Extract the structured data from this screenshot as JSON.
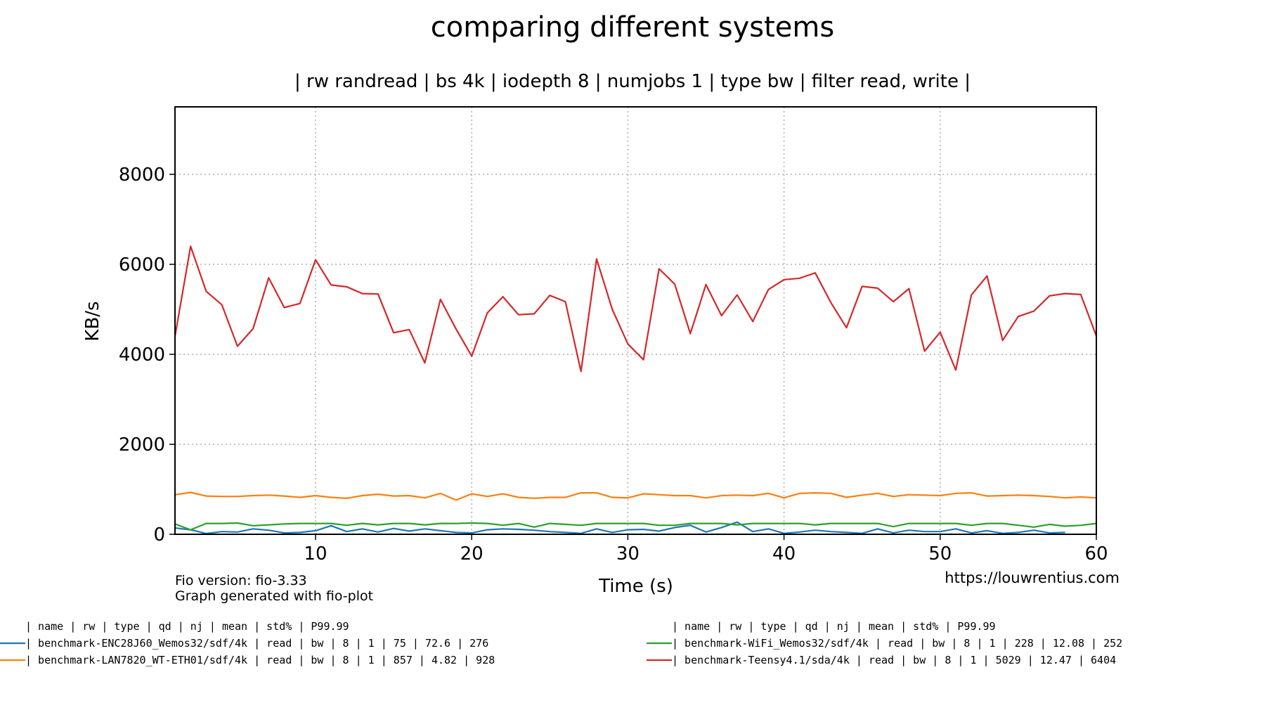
{
  "chart_data": {
    "type": "line",
    "title": "comparing different systems",
    "subtitle": "| rw randread | bs 4k | iodepth 8 | numjobs 1 | type bw | filter read, write |",
    "xlabel": "Time (s)",
    "ylabel": "KB/s",
    "xlim": [
      1,
      60
    ],
    "ylim": [
      0,
      9500
    ],
    "xticks": [
      10,
      20,
      30,
      40,
      50,
      60
    ],
    "yticks": [
      0,
      2000,
      4000,
      6000,
      8000
    ],
    "grid": true,
    "footer_left": [
      "Fio version: fio-3.33",
      "Graph generated with fio-plot"
    ],
    "footer_right": "https://louwrentius.com",
    "x": [
      1,
      2,
      3,
      4,
      5,
      6,
      7,
      8,
      9,
      10,
      11,
      12,
      13,
      14,
      15,
      16,
      17,
      18,
      19,
      20,
      21,
      22,
      23,
      24,
      25,
      26,
      27,
      28,
      29,
      30,
      31,
      32,
      33,
      34,
      35,
      36,
      37,
      38,
      39,
      40,
      41,
      42,
      43,
      44,
      45,
      46,
      47,
      48,
      49,
      50,
      51,
      52,
      53,
      54,
      55,
      56,
      57,
      58,
      59,
      60
    ],
    "series": [
      {
        "name": "benchmark-ENC28J60_Wemos32/sdf/4k",
        "color": "#1f77b4",
        "values": [
          140,
          100,
          15,
          60,
          50,
          120,
          90,
          30,
          40,
          80,
          190,
          60,
          120,
          50,
          130,
          70,
          120,
          80,
          40,
          30,
          100,
          120,
          110,
          90,
          60,
          40,
          20,
          120,
          40,
          100,
          110,
          70,
          150,
          200,
          50,
          150,
          270,
          60,
          120,
          20,
          50,
          90,
          60,
          40,
          20,
          120,
          30,
          90,
          60,
          60,
          120,
          30,
          80,
          20,
          40,
          90,
          30,
          40,
          null,
          null
        ]
      },
      {
        "name": "benchmark-LAN7820_WT-ETH01/sdf/4k",
        "color": "#ff7f0e",
        "values": [
          880,
          930,
          850,
          840,
          840,
          860,
          870,
          850,
          820,
          860,
          820,
          800,
          860,
          890,
          850,
          860,
          810,
          910,
          760,
          900,
          840,
          900,
          820,
          800,
          820,
          820,
          920,
          920,
          820,
          810,
          900,
          880,
          860,
          860,
          810,
          860,
          870,
          860,
          910,
          810,
          910,
          920,
          910,
          820,
          870,
          910,
          840,
          880,
          870,
          860,
          910,
          920,
          850,
          860,
          870,
          860,
          840,
          810,
          830,
          810
        ]
      },
      {
        "name": "benchmark-WiFi_Wemos32/sdf/4k",
        "color": "#2ca02c",
        "values": [
          230,
          100,
          240,
          240,
          250,
          190,
          210,
          230,
          240,
          240,
          240,
          200,
          240,
          210,
          240,
          240,
          210,
          240,
          240,
          250,
          240,
          200,
          240,
          160,
          240,
          220,
          200,
          240,
          240,
          240,
          240,
          200,
          200,
          240,
          240,
          240,
          210,
          240,
          240,
          240,
          240,
          210,
          240,
          240,
          240,
          240,
          170,
          240,
          240,
          240,
          240,
          200,
          240,
          240,
          200,
          160,
          220,
          180,
          200,
          240
        ]
      },
      {
        "name": "benchmark-Teensy4.1/sda/4k",
        "color": "#d62728",
        "values": [
          4400,
          6400,
          5400,
          5100,
          4180,
          4570,
          5700,
          5040,
          5130,
          6100,
          5540,
          5500,
          5350,
          5340,
          4480,
          4550,
          3810,
          5220,
          4560,
          3960,
          4920,
          5280,
          4880,
          4900,
          5310,
          5170,
          3620,
          6120,
          5000,
          4230,
          3880,
          5900,
          5560,
          4460,
          5550,
          4860,
          5320,
          4730,
          5440,
          5660,
          5690,
          5810,
          5150,
          4590,
          5510,
          5470,
          5170,
          5460,
          4070,
          4490,
          3650,
          5320,
          5740,
          4310,
          4840,
          4960,
          5300,
          5350,
          5330,
          4410
        ]
      }
    ],
    "table": {
      "columns": [
        "name",
        "rw",
        "type",
        "qd",
        "nj",
        "mean",
        "std%",
        "P99.99"
      ],
      "header_left": "   | name                              | rw    | type | qd | nj | mean | std%   | P99.99",
      "header_right": "   | name                              | rw    | type | qd | nj | mean | std%   | P99.99",
      "rows": [
        {
          "series": 0,
          "col": "left",
          "text": "  |  benchmark-ENC28J60_Wemos32/sdf/4k |  read |   bw |  8 |  1 |   75 |   72.6 |  276"
        },
        {
          "series": 1,
          "col": "left",
          "text": "  |  benchmark-LAN7820_WT-ETH01/sdf/4k |  read |   bw |  8 |  1 |  857 |   4.82 |  928"
        },
        {
          "series": 2,
          "col": "right",
          "text": "  |  benchmark-WiFi_Wemos32/sdf/4k      |  read |   bw |  8 |  1 |  228 |  12.08 |  252"
        },
        {
          "series": 3,
          "col": "right",
          "text": "  |  benchmark-Teensy4.1/sda/4k        |  read |   bw |  8 |  1 | 5029 |  12.47 | 6404"
        }
      ]
    }
  }
}
